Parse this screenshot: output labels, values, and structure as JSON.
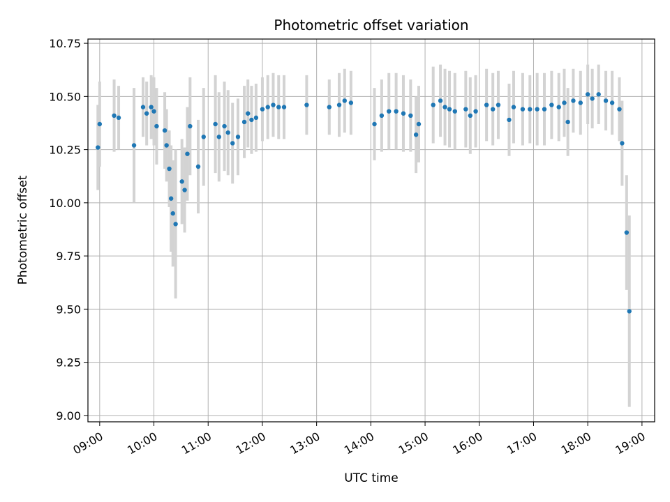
{
  "chart_data": {
    "type": "scatter",
    "title": "Photometric offset variation",
    "xlabel": "UTC time",
    "ylabel": "Photometric offset",
    "xlim": [
      "08:47",
      "19:14"
    ],
    "ylim": [
      8.97,
      10.77
    ],
    "grid": true,
    "x_ticks": [
      "09:00",
      "10:00",
      "11:00",
      "12:00",
      "13:00",
      "14:00",
      "15:00",
      "16:00",
      "17:00",
      "18:00",
      "19:00"
    ],
    "y_ticks": [
      "9.00",
      "9.25",
      "9.50",
      "9.75",
      "10.00",
      "10.25",
      "10.50",
      "10.75"
    ],
    "colors": {
      "marker": "#1f77b4",
      "errorbar": "#d3d3d3",
      "grid": "#b0b0b0"
    },
    "series": [
      {
        "points": [
          {
            "x": "08:58",
            "y": 10.26,
            "err": 0.2
          },
          {
            "x": "09:00",
            "y": 10.37,
            "err": 0.2
          },
          {
            "x": "09:16",
            "y": 10.41,
            "err": 0.17
          },
          {
            "x": "09:21",
            "y": 10.4,
            "err": 0.15
          },
          {
            "x": "09:38",
            "y": 10.27,
            "err": 0.27
          },
          {
            "x": "09:48",
            "y": 10.45,
            "err": 0.14
          },
          {
            "x": "09:52",
            "y": 10.42,
            "err": 0.15
          },
          {
            "x": "09:57",
            "y": 10.45,
            "err": 0.15
          },
          {
            "x": "10:00",
            "y": 10.43,
            "err": 0.16
          },
          {
            "x": "10:03",
            "y": 10.36,
            "err": 0.18
          },
          {
            "x": "10:12",
            "y": 10.34,
            "err": 0.18
          },
          {
            "x": "10:14",
            "y": 10.27,
            "err": 0.17
          },
          {
            "x": "10:17",
            "y": 10.16,
            "err": 0.18
          },
          {
            "x": "10:19",
            "y": 10.02,
            "err": 0.25
          },
          {
            "x": "10:21",
            "y": 9.95,
            "err": 0.25
          },
          {
            "x": "10:24",
            "y": 9.9,
            "err": 0.35
          },
          {
            "x": "10:31",
            "y": 10.1,
            "err": 0.2
          },
          {
            "x": "10:34",
            "y": 10.06,
            "err": 0.2
          },
          {
            "x": "10:37",
            "y": 10.23,
            "err": 0.22
          },
          {
            "x": "10:40",
            "y": 10.36,
            "err": 0.23
          },
          {
            "x": "10:49",
            "y": 10.17,
            "err": 0.22
          },
          {
            "x": "10:55",
            "y": 10.31,
            "err": 0.23
          },
          {
            "x": "11:08",
            "y": 10.37,
            "err": 0.23
          },
          {
            "x": "11:12",
            "y": 10.31,
            "err": 0.21
          },
          {
            "x": "11:18",
            "y": 10.36,
            "err": 0.21
          },
          {
            "x": "11:22",
            "y": 10.33,
            "err": 0.2
          },
          {
            "x": "11:27",
            "y": 10.28,
            "err": 0.19
          },
          {
            "x": "11:33",
            "y": 10.31,
            "err": 0.18
          },
          {
            "x": "11:40",
            "y": 10.38,
            "err": 0.17
          },
          {
            "x": "11:44",
            "y": 10.42,
            "err": 0.16
          },
          {
            "x": "11:48",
            "y": 10.39,
            "err": 0.16
          },
          {
            "x": "11:53",
            "y": 10.4,
            "err": 0.16
          },
          {
            "x": "12:00",
            "y": 10.44,
            "err": 0.15
          },
          {
            "x": "12:06",
            "y": 10.45,
            "err": 0.15
          },
          {
            "x": "12:12",
            "y": 10.46,
            "err": 0.15
          },
          {
            "x": "12:18",
            "y": 10.45,
            "err": 0.15
          },
          {
            "x": "12:24",
            "y": 10.45,
            "err": 0.15
          },
          {
            "x": "12:49",
            "y": 10.46,
            "err": 0.14
          },
          {
            "x": "13:14",
            "y": 10.45,
            "err": 0.13
          },
          {
            "x": "13:25",
            "y": 10.46,
            "err": 0.15
          },
          {
            "x": "13:31",
            "y": 10.48,
            "err": 0.15
          },
          {
            "x": "13:38",
            "y": 10.47,
            "err": 0.15
          },
          {
            "x": "14:04",
            "y": 10.37,
            "err": 0.17
          },
          {
            "x": "14:12",
            "y": 10.41,
            "err": 0.17
          },
          {
            "x": "14:20",
            "y": 10.43,
            "err": 0.18
          },
          {
            "x": "14:28",
            "y": 10.43,
            "err": 0.18
          },
          {
            "x": "14:36",
            "y": 10.42,
            "err": 0.18
          },
          {
            "x": "14:44",
            "y": 10.41,
            "err": 0.17
          },
          {
            "x": "14:50",
            "y": 10.32,
            "err": 0.18
          },
          {
            "x": "14:53",
            "y": 10.37,
            "err": 0.18
          },
          {
            "x": "15:09",
            "y": 10.46,
            "err": 0.18
          },
          {
            "x": "15:17",
            "y": 10.48,
            "err": 0.17
          },
          {
            "x": "15:22",
            "y": 10.45,
            "err": 0.18
          },
          {
            "x": "15:27",
            "y": 10.44,
            "err": 0.18
          },
          {
            "x": "15:33",
            "y": 10.43,
            "err": 0.18
          },
          {
            "x": "15:45",
            "y": 10.44,
            "err": 0.18
          },
          {
            "x": "15:50",
            "y": 10.41,
            "err": 0.18
          },
          {
            "x": "15:56",
            "y": 10.43,
            "err": 0.17
          },
          {
            "x": "16:08",
            "y": 10.46,
            "err": 0.17
          },
          {
            "x": "16:15",
            "y": 10.44,
            "err": 0.17
          },
          {
            "x": "16:21",
            "y": 10.46,
            "err": 0.16
          },
          {
            "x": "16:33",
            "y": 10.39,
            "err": 0.17
          },
          {
            "x": "16:38",
            "y": 10.45,
            "err": 0.17
          },
          {
            "x": "16:48",
            "y": 10.44,
            "err": 0.17
          },
          {
            "x": "16:56",
            "y": 10.44,
            "err": 0.16
          },
          {
            "x": "17:04",
            "y": 10.44,
            "err": 0.17
          },
          {
            "x": "17:12",
            "y": 10.44,
            "err": 0.17
          },
          {
            "x": "17:20",
            "y": 10.46,
            "err": 0.16
          },
          {
            "x": "17:28",
            "y": 10.45,
            "err": 0.16
          },
          {
            "x": "17:34",
            "y": 10.47,
            "err": 0.16
          },
          {
            "x": "17:38",
            "y": 10.38,
            "err": 0.16
          },
          {
            "x": "17:44",
            "y": 10.48,
            "err": 0.15
          },
          {
            "x": "17:52",
            "y": 10.47,
            "err": 0.15
          },
          {
            "x": "18:00",
            "y": 10.51,
            "err": 0.14
          },
          {
            "x": "18:05",
            "y": 10.49,
            "err": 0.14
          },
          {
            "x": "18:12",
            "y": 10.51,
            "err": 0.14
          },
          {
            "x": "18:20",
            "y": 10.48,
            "err": 0.14
          },
          {
            "x": "18:27",
            "y": 10.47,
            "err": 0.15
          },
          {
            "x": "18:35",
            "y": 10.44,
            "err": 0.15
          },
          {
            "x": "18:38",
            "y": 10.28,
            "err": 0.2
          },
          {
            "x": "18:43",
            "y": 9.86,
            "err": 0.27
          },
          {
            "x": "18:46",
            "y": 9.49,
            "err": 0.45
          }
        ]
      }
    ]
  }
}
